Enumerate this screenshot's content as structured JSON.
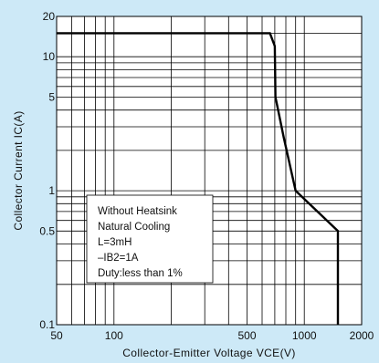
{
  "colors": {
    "background": "#cde9f7",
    "plot_area": "#ffffff",
    "grid": "#000000",
    "curve": "#000000"
  },
  "chart_data": {
    "type": "line",
    "title": "",
    "xlabel": "Collector-Emitter Voltage VCE(V)",
    "ylabel": "Collector Current IC(A)",
    "x_scale": "log",
    "y_scale": "log",
    "xlim": [
      50,
      2000
    ],
    "ylim": [
      0.1,
      20
    ],
    "grid": true,
    "x_ticks": [
      {
        "value": 50,
        "label": "50"
      },
      {
        "value": 100,
        "label": "100"
      },
      {
        "value": 500,
        "label": "500"
      },
      {
        "value": 1000,
        "label": "1000"
      },
      {
        "value": 2000,
        "label": "2000"
      }
    ],
    "y_ticks": [
      {
        "value": 0.1,
        "label": "0.1"
      },
      {
        "value": 0.5,
        "label": "0.5"
      },
      {
        "value": 1,
        "label": "1"
      },
      {
        "value": 5,
        "label": "5"
      },
      {
        "value": 10,
        "label": "10"
      },
      {
        "value": 20,
        "label": "20"
      }
    ],
    "x_gridlines": [
      60,
      70,
      80,
      90,
      100,
      200,
      300,
      400,
      500,
      600,
      700,
      800,
      900,
      1000,
      2000
    ],
    "y_gridlines": [
      0.2,
      0.3,
      0.4,
      0.5,
      0.6,
      0.7,
      0.8,
      0.9,
      1,
      2,
      3,
      4,
      5,
      6,
      7,
      8,
      9,
      10,
      15
    ],
    "series": [
      {
        "x": [
          50,
          660,
          700,
          705,
          780,
          900,
          1500,
          1500
        ],
        "y": [
          15,
          15,
          12,
          5,
          2.5,
          1,
          0.5,
          0.1
        ]
      }
    ],
    "annotation": {
      "lines": [
        "Without Heatsink",
        "Natural Cooling",
        "L=3mH",
        "–IB2=1A",
        "Duty:less than 1%"
      ]
    }
  }
}
